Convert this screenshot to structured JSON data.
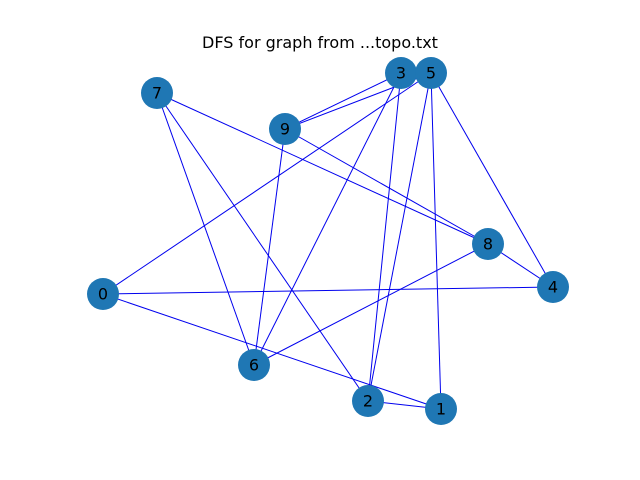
{
  "title": "DFS for graph from ...topo.txt",
  "colors": {
    "node_fill": "#1f77b4",
    "edge_stroke": "#0000ee",
    "label": "#000000",
    "background": "#ffffff"
  },
  "graph": {
    "nodes": [
      {
        "id": "0"
      },
      {
        "id": "1"
      },
      {
        "id": "2"
      },
      {
        "id": "3"
      },
      {
        "id": "4"
      },
      {
        "id": "5"
      },
      {
        "id": "6"
      },
      {
        "id": "7"
      },
      {
        "id": "8"
      },
      {
        "id": "9"
      }
    ],
    "edges": [
      [
        "7",
        "6"
      ],
      [
        "7",
        "2"
      ],
      [
        "7",
        "8"
      ],
      [
        "9",
        "8"
      ],
      [
        "9",
        "3"
      ],
      [
        "9",
        "5"
      ],
      [
        "9",
        "6"
      ],
      [
        "3",
        "6"
      ],
      [
        "3",
        "2"
      ],
      [
        "5",
        "2"
      ],
      [
        "5",
        "1"
      ],
      [
        "5",
        "0"
      ],
      [
        "5",
        "4"
      ],
      [
        "8",
        "6"
      ],
      [
        "8",
        "4"
      ],
      [
        "0",
        "4"
      ],
      [
        "0",
        "1"
      ],
      [
        "2",
        "1"
      ]
    ]
  }
}
